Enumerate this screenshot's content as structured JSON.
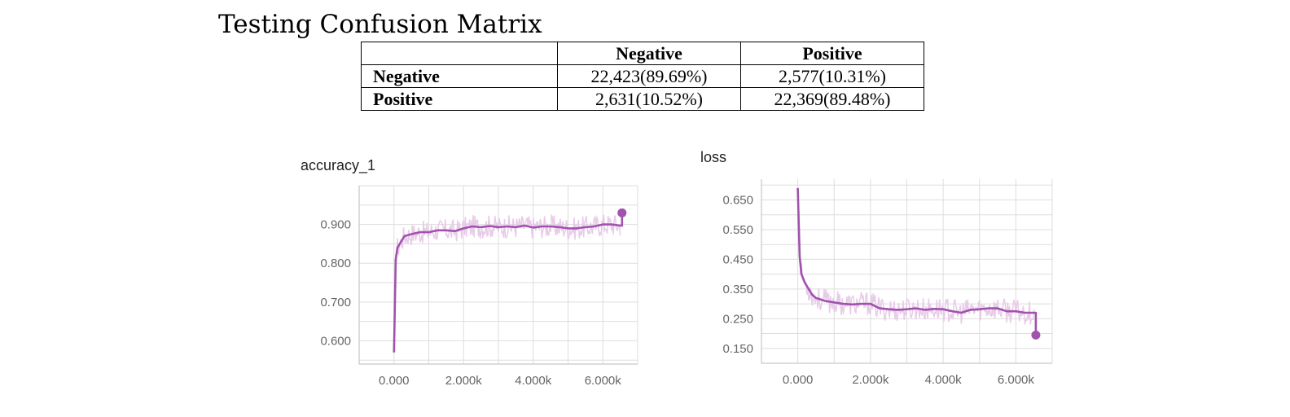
{
  "title": "Testing Confusion Matrix",
  "confusion_matrix": {
    "corner": "",
    "columns": [
      "Negative",
      "Positive"
    ],
    "rows": [
      {
        "label": "Negative",
        "values": [
          "22,423(89.69%)",
          "2,577(10.31%)"
        ]
      },
      {
        "label": "Positive",
        "values": [
          "2,631(10.52%)",
          "22,369(89.48%)"
        ]
      }
    ]
  },
  "chart_data": [
    {
      "type": "line",
      "title": "accuracy_1",
      "xlabel": "",
      "ylabel": "",
      "xlim": [
        -1000,
        7000
      ],
      "ylim": [
        0.54,
        1.0
      ],
      "xticks": [
        0,
        2000,
        4000,
        6000
      ],
      "xtick_labels": [
        "0.000",
        "2.000k",
        "4.000k",
        "6.000k"
      ],
      "yticks": [
        0.6,
        0.7,
        0.8,
        0.9
      ],
      "ytick_labels": [
        "0.600",
        "0.700",
        "0.800",
        "0.900"
      ],
      "grid": true,
      "colors": {
        "smoothed": "#a052ad",
        "raw": "#e8cbe9"
      },
      "series": [
        {
          "x": [
            0,
            50,
            100,
            200,
            300,
            500,
            750,
            1000,
            1250,
            1500,
            1750,
            2000,
            2250,
            2500,
            2750,
            3000,
            3250,
            3500,
            3750,
            4000,
            4250,
            4500,
            4750,
            5000,
            5250,
            5500,
            5750,
            6000,
            6250,
            6500
          ],
          "y": [
            0.57,
            0.81,
            0.84,
            0.855,
            0.87,
            0.875,
            0.88,
            0.88,
            0.885,
            0.885,
            0.883,
            0.89,
            0.895,
            0.893,
            0.896,
            0.893,
            0.895,
            0.893,
            0.897,
            0.892,
            0.895,
            0.895,
            0.893,
            0.89,
            0.89,
            0.893,
            0.895,
            0.9,
            0.9,
            0.897
          ]
        }
      ],
      "last_point": {
        "x": 6550,
        "y": 0.93
      }
    },
    {
      "type": "line",
      "title": "loss",
      "xlabel": "",
      "ylabel": "",
      "xlim": [
        -1000,
        7000
      ],
      "ylim": [
        0.1,
        0.72
      ],
      "xticks": [
        0,
        2000,
        4000,
        6000
      ],
      "xtick_labels": [
        "0.000",
        "2.000k",
        "4.000k",
        "6.000k"
      ],
      "yticks": [
        0.15,
        0.25,
        0.35,
        0.45,
        0.55,
        0.65
      ],
      "ytick_labels": [
        "0.150",
        "0.250",
        "0.350",
        "0.450",
        "0.550",
        "0.650"
      ],
      "grid": true,
      "colors": {
        "smoothed": "#a052ad",
        "raw": "#e8cbe9"
      },
      "series": [
        {
          "x": [
            0,
            50,
            100,
            200,
            300,
            400,
            500,
            750,
            1000,
            1250,
            1500,
            1750,
            2000,
            2250,
            2500,
            2750,
            3000,
            3250,
            3500,
            3750,
            4000,
            4250,
            4500,
            4750,
            5000,
            5250,
            5500,
            5750,
            6000,
            6250,
            6500
          ],
          "y": [
            0.69,
            0.46,
            0.4,
            0.37,
            0.35,
            0.33,
            0.32,
            0.31,
            0.305,
            0.3,
            0.298,
            0.3,
            0.3,
            0.285,
            0.282,
            0.28,
            0.282,
            0.285,
            0.28,
            0.283,
            0.282,
            0.275,
            0.27,
            0.28,
            0.282,
            0.285,
            0.285,
            0.275,
            0.275,
            0.27,
            0.27
          ]
        }
      ],
      "last_point": {
        "x": 6550,
        "y": 0.195
      }
    }
  ]
}
